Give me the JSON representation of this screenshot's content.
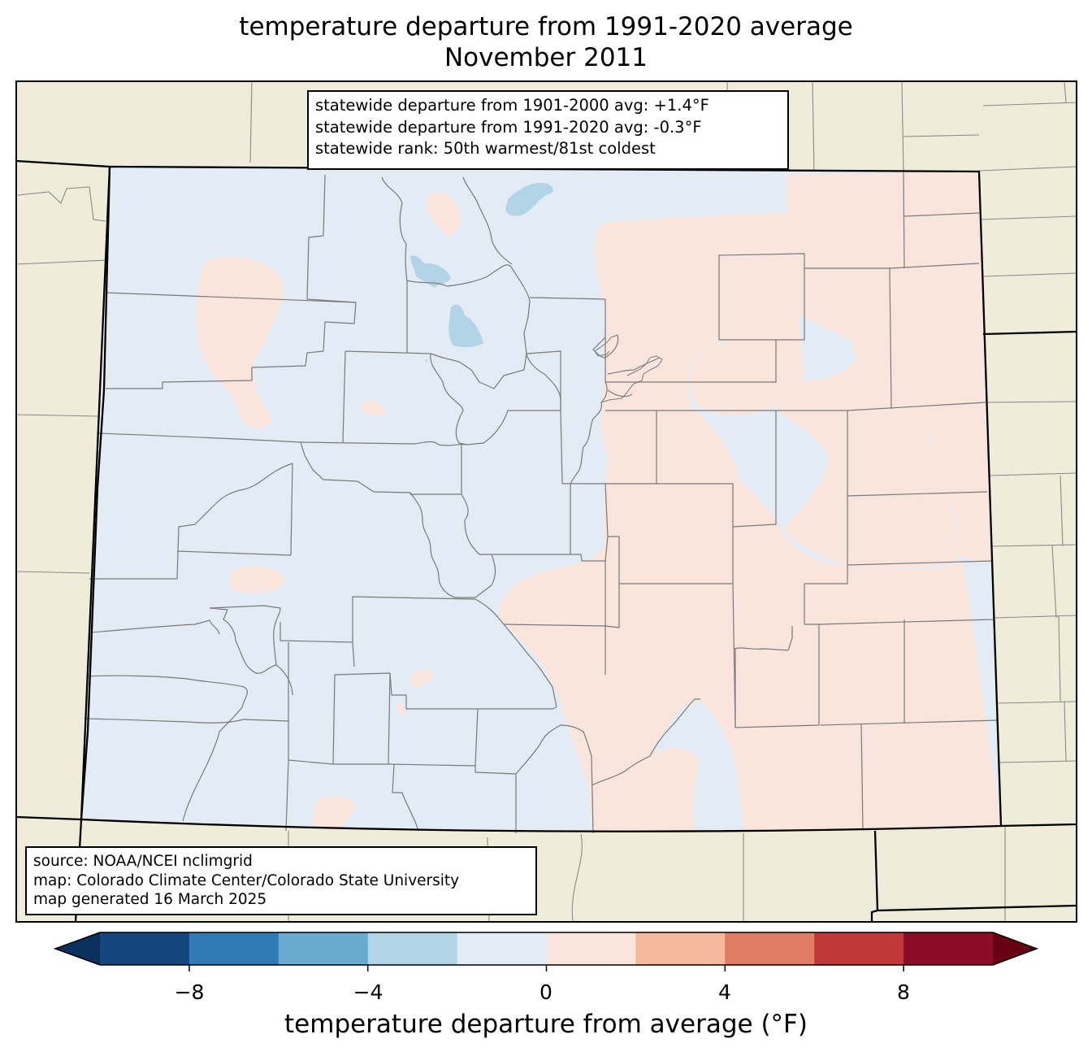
{
  "title": {
    "line1": "temperature departure from 1991-2020 average",
    "line2": "November 2011"
  },
  "stats": {
    "line1": "statewide departure from 1901-2000 avg: +1.4°F",
    "line2": "statewide departure from 1991-2020 avg: -0.3°F",
    "line3": "statewide rank: 50th warmest/81st coldest"
  },
  "source": {
    "line1": "source: NOAA/NCEI nclimgrid",
    "line2": "map: Colorado Climate Center/Colorado State University",
    "line3": "map generated 16 March 2025"
  },
  "colorbar": {
    "label": "temperature departure from average (°F)",
    "ticks": [
      "−8",
      "−4",
      "0",
      "4",
      "8"
    ],
    "bins": [
      -10,
      -8,
      -6,
      -4,
      -2,
      0,
      2,
      4,
      6,
      8,
      10
    ],
    "colors": [
      "#15457d",
      "#2f7bb7",
      "#69abd0",
      "#b1d4e7",
      "#e3ecf4",
      "#f9e5dc",
      "#f7b99d",
      "#e07d64",
      "#c0383a",
      "#8a0c26"
    ],
    "under_color": "#0b305e",
    "over_color": "#670010"
  },
  "map_colors": {
    "background": "#efedda",
    "cool": "#e3ecf4",
    "warm": "#f9e5dc",
    "cold_spot": "#b1d4e7"
  }
}
